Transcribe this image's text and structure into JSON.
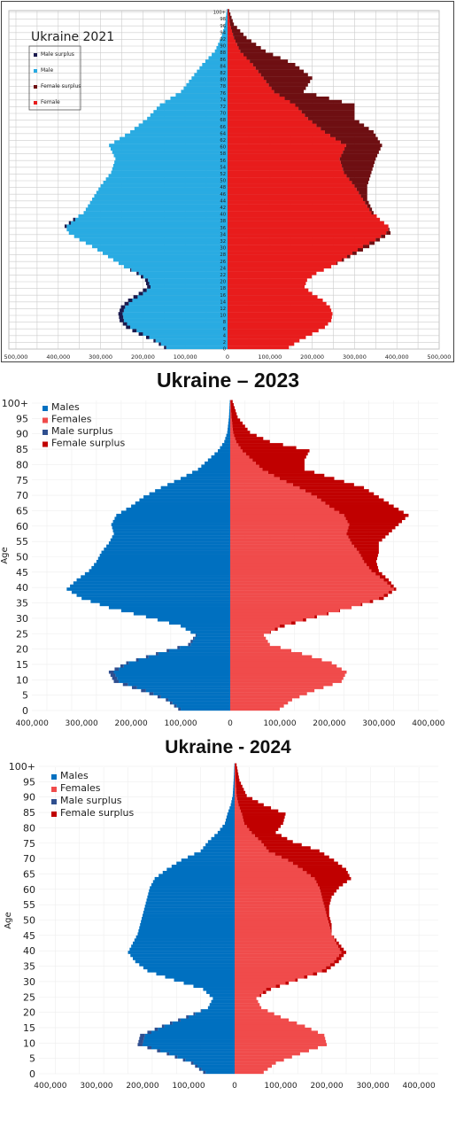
{
  "chart_data": [
    {
      "type": "bar",
      "subtype": "population-pyramid",
      "title": "Ukraine 2021",
      "xlabel": "",
      "ylabel": "",
      "x_ticks": [
        "500,000",
        "400,000",
        "300,000",
        "200,000",
        "100,000",
        "0",
        "100,000",
        "200,000",
        "300,000",
        "400,000",
        "500,000"
      ],
      "x_range": [
        -500000,
        500000
      ],
      "y_range": [
        0,
        100
      ],
      "age_tick_step": 2,
      "top_age_label": "100+",
      "legend": [
        "Male surplus",
        "Male",
        "Female surplus",
        "Female"
      ],
      "legend_position": "top-left",
      "grid": true,
      "colors": {
        "male": "#29abe2",
        "male_surplus": "#1a1a4e",
        "female": "#e81c1c",
        "female_surplus": "#6e0f12"
      },
      "anchors": {
        "age": [
          0,
          2,
          4,
          6,
          8,
          10,
          12,
          14,
          16,
          18,
          20,
          22,
          24,
          26,
          28,
          30,
          32,
          34,
          36,
          38,
          40,
          44,
          48,
          52,
          56,
          60,
          64,
          68,
          72,
          76,
          80,
          84,
          88,
          92,
          96,
          100
        ],
        "male": [
          150000,
          175000,
          210000,
          240000,
          255000,
          258000,
          252000,
          235000,
          210000,
          190000,
          195000,
          215000,
          245000,
          270000,
          295000,
          320000,
          350000,
          375000,
          385000,
          365000,
          340000,
          320000,
          300000,
          275000,
          265000,
          280000,
          230000,
          190000,
          160000,
          110000,
          85000,
          60000,
          30000,
          15000,
          6000,
          2000
        ],
        "female": [
          145000,
          170000,
          200000,
          230000,
          245000,
          248000,
          242000,
          225000,
          200000,
          182000,
          188000,
          210000,
          245000,
          275000,
          305000,
          335000,
          360000,
          385000,
          380000,
          360000,
          345000,
          330000,
          330000,
          340000,
          350000,
          365000,
          345000,
          300000,
          300000,
          180000,
          200000,
          160000,
          90000,
          45000,
          15000,
          4000
        ]
      }
    },
    {
      "type": "bar",
      "subtype": "population-pyramid",
      "title": "Ukraine – 2023",
      "xlabel": "",
      "ylabel": "Age",
      "x_ticks": [
        "400,000",
        "300,000",
        "200,000",
        "100,000",
        "0",
        "100,000",
        "200,000",
        "300,000",
        "400,000"
      ],
      "x_range": [
        -420000,
        420000
      ],
      "y_ticks": [
        "0",
        "5",
        "10",
        "15",
        "20",
        "25",
        "30",
        "35",
        "40",
        "45",
        "50",
        "55",
        "60",
        "65",
        "70",
        "75",
        "80",
        "85",
        "90",
        "95",
        "100+"
      ],
      "y_range": [
        0,
        100
      ],
      "legend": [
        "Males",
        "Females",
        "Male surplus",
        "Female surplus"
      ],
      "legend_position": "top-left",
      "grid": true,
      "colors": {
        "male": "#0070c0",
        "female": "#f04b4b",
        "male_surplus": "#2f4f8f",
        "female_surplus": "#c00000"
      },
      "anchors": {
        "age": [
          0,
          3,
          6,
          9,
          12,
          15,
          18,
          21,
          24,
          27,
          30,
          33,
          36,
          39,
          42,
          45,
          48,
          51,
          54,
          57,
          60,
          63,
          66,
          69,
          72,
          75,
          78,
          81,
          84,
          87,
          90,
          95,
          100
        ],
        "male": [
          105000,
          130000,
          180000,
          235000,
          245000,
          210000,
          150000,
          85000,
          70000,
          100000,
          170000,
          245000,
          300000,
          330000,
          310000,
          285000,
          270000,
          260000,
          245000,
          235000,
          240000,
          230000,
          200000,
          175000,
          140000,
          100000,
          65000,
          45000,
          25000,
          12000,
          6000,
          2500,
          800
        ],
        "female": [
          100000,
          125000,
          170000,
          225000,
          235000,
          205000,
          145000,
          80000,
          68000,
          110000,
          175000,
          245000,
          310000,
          335000,
          320000,
          300000,
          295000,
          300000,
          300000,
          320000,
          340000,
          360000,
          330000,
          300000,
          270000,
          210000,
          150000,
          150000,
          160000,
          80000,
          40000,
          15000,
          5000
        ]
      }
    },
    {
      "type": "bar",
      "subtype": "population-pyramid",
      "title": "Ukraine - 2024",
      "xlabel": "",
      "ylabel": "Age",
      "x_ticks": [
        "400,000",
        "300,000",
        "200,000",
        "100,000",
        "0",
        "100,000",
        "200,000",
        "300,000",
        "400,000"
      ],
      "x_range": [
        -420000,
        420000
      ],
      "y_ticks": [
        "0",
        "5",
        "10",
        "15",
        "20",
        "25",
        "30",
        "35",
        "40",
        "45",
        "50",
        "55",
        "60",
        "65",
        "70",
        "75",
        "80",
        "85",
        "90",
        "95",
        "100+"
      ],
      "y_range": [
        0,
        100
      ],
      "legend": [
        "Males",
        "Females",
        "Male surplus",
        "Female surplus"
      ],
      "legend_position": "top-left",
      "grid": true,
      "colors": {
        "male": "#0070c0",
        "female": "#f04b4b",
        "male_surplus": "#2f4f8f",
        "female_surplus": "#c00000"
      },
      "anchors": {
        "age": [
          0,
          3,
          6,
          9,
          12,
          15,
          18,
          21,
          24,
          27,
          30,
          33,
          36,
          39,
          42,
          45,
          48,
          51,
          54,
          57,
          60,
          63,
          66,
          69,
          72,
          75,
          78,
          81,
          84,
          87,
          90,
          95,
          100
        ],
        "male": [
          65000,
          90000,
          140000,
          200000,
          195000,
          150000,
          100000,
          55000,
          45000,
          65000,
          125000,
          180000,
          205000,
          220000,
          210000,
          200000,
          195000,
          190000,
          185000,
          180000,
          175000,
          165000,
          140000,
          110000,
          70000,
          55000,
          35000,
          20000,
          15000,
          8000,
          4000,
          2000,
          600
        ],
        "female": [
          60000,
          85000,
          135000,
          190000,
          185000,
          145000,
          95000,
          55000,
          45000,
          75000,
          130000,
          190000,
          215000,
          230000,
          215000,
          200000,
          200000,
          195000,
          195000,
          200000,
          215000,
          240000,
          230000,
          205000,
          175000,
          120000,
          85000,
          100000,
          105000,
          60000,
          25000,
          10000,
          4000
        ]
      }
    }
  ]
}
